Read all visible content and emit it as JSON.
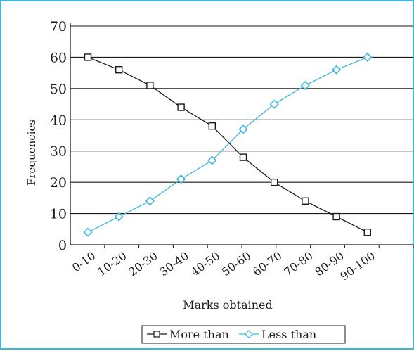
{
  "chart_data": {
    "type": "line",
    "title": "",
    "xlabel": "Marks obtained",
    "ylabel": "Frequencies",
    "categories": [
      "0-10",
      "10-20",
      "20-30",
      "30-40",
      "40-50",
      "50-60",
      "60-70",
      "70-80",
      "80-90",
      "90-100"
    ],
    "ylim": [
      0,
      70
    ],
    "yticks": [
      0,
      10,
      20,
      30,
      40,
      50,
      60,
      70
    ],
    "grid": true,
    "legend_position": "bottom",
    "series": [
      {
        "name": "More than",
        "values": [
          60,
          56,
          51,
          44,
          38,
          28,
          20,
          14,
          9,
          4
        ],
        "color": "#1a1a1a",
        "marker": "square"
      },
      {
        "name": "Less than",
        "values": [
          4,
          9,
          14,
          21,
          27,
          37,
          45,
          51,
          56,
          60
        ],
        "color": "#3fb5e0",
        "marker": "diamond"
      }
    ]
  },
  "colors": {
    "frame_border": "#3fb5e0",
    "grid": "#1a1a1a"
  }
}
